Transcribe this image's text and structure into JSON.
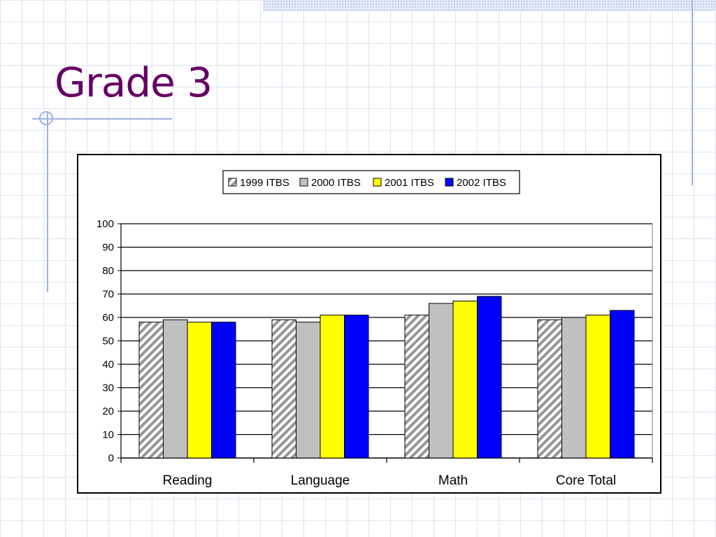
{
  "slide": {
    "title": "Grade 3"
  },
  "colors": {
    "title": "#660066",
    "series": [
      "#c0c0c0",
      "#c0c0c0",
      "#ffff00",
      "#0000ff"
    ],
    "hatch": "#969696",
    "decor": "#9fb0de"
  },
  "chart_data": {
    "type": "bar",
    "title": "",
    "xlabel": "",
    "ylabel": "",
    "categories": [
      "Reading",
      "Language",
      "Math",
      "Core Total"
    ],
    "series": [
      {
        "name": "1999 ITBS",
        "values": [
          58,
          59,
          61,
          59
        ],
        "pattern": "hatched"
      },
      {
        "name": "2000 ITBS",
        "values": [
          59,
          58,
          66,
          60
        ],
        "pattern": "solid"
      },
      {
        "name": "2001 ITBS",
        "values": [
          58,
          61,
          67,
          61
        ],
        "pattern": "solid"
      },
      {
        "name": "2002 ITBS",
        "values": [
          58,
          61,
          69,
          63
        ],
        "pattern": "solid"
      }
    ],
    "ylim": [
      0,
      100
    ],
    "yticks": [
      0,
      10,
      20,
      30,
      40,
      50,
      60,
      70,
      80,
      90,
      100
    ],
    "grid": true,
    "legend": "top-center"
  }
}
